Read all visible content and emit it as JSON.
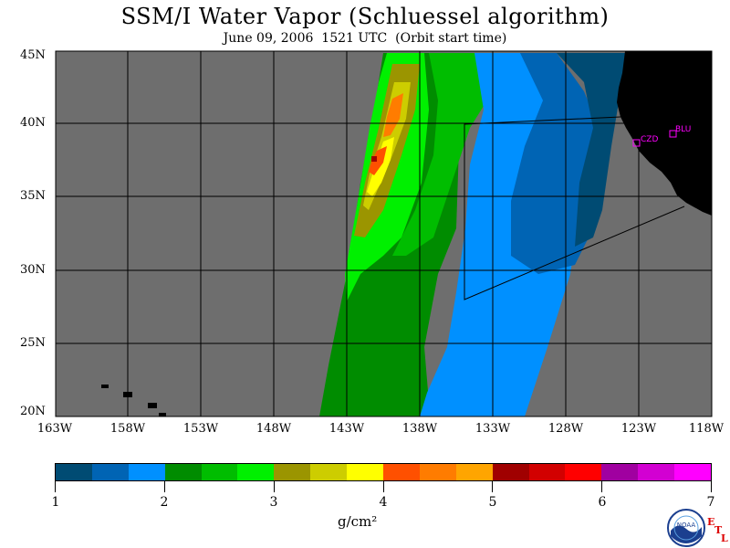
{
  "title": "SSM/I Water Vapor (Schluessel algorithm)",
  "subtitle": "June 09, 2006  1521 UTC  (Orbit start time)",
  "latitude_labels": [
    "45N",
    "40N",
    "35N",
    "30N",
    "25N",
    "20N"
  ],
  "longitude_labels": [
    "163W",
    "158W",
    "153W",
    "148W",
    "143W",
    "138W",
    "133W",
    "128W",
    "123W",
    "118W"
  ],
  "colorbar": {
    "colors": [
      "#004b73",
      "#0064b4",
      "#0090ff",
      "#008c00",
      "#00bd00",
      "#00f000",
      "#9b9500",
      "#cdcd00",
      "#ffff00",
      "#ff5000",
      "#ff7c00",
      "#ffa500",
      "#a00000",
      "#d20000",
      "#ff0000",
      "#a000a0",
      "#d200d2",
      "#ff00ff"
    ],
    "labels": [
      "1",
      "2",
      "3",
      "4",
      "5",
      "6",
      "7"
    ],
    "unit": "g/cm²"
  },
  "stations": [
    {
      "name": "CZD"
    },
    {
      "name": "BLU"
    }
  ],
  "colors": {
    "no_data": "#6e6e6e",
    "land": "#000000",
    "grid": "#000000"
  },
  "logo": {
    "text": "NOAA",
    "badge": [
      "E",
      "T",
      "L"
    ]
  }
}
